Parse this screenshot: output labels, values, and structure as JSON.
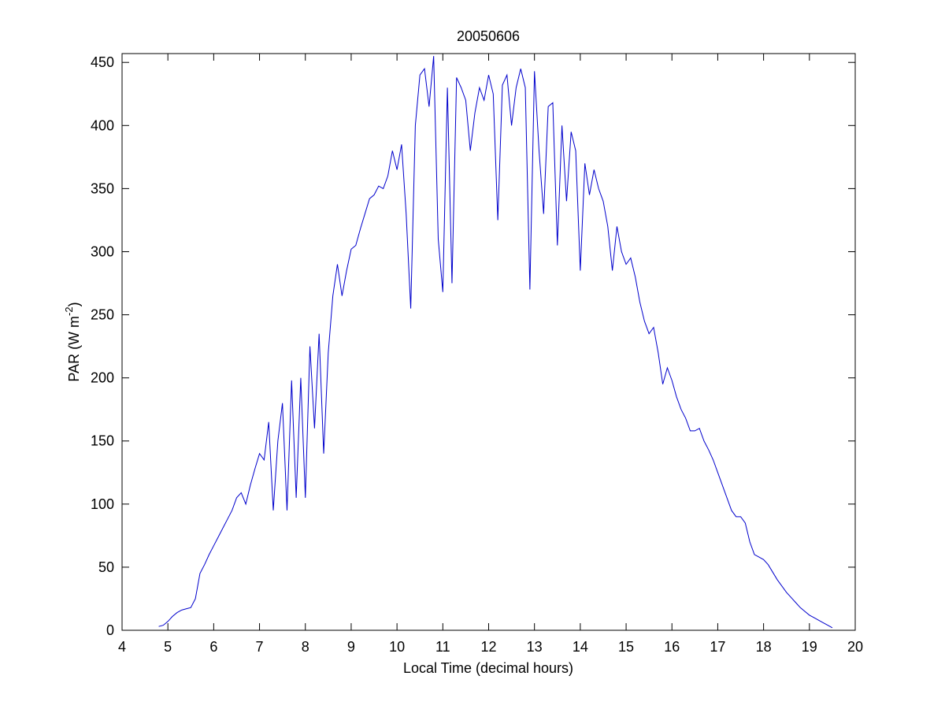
{
  "chart_data": {
    "type": "line",
    "title": "20050606",
    "xlabel": "Local Time (decimal hours)",
    "ylabel": {
      "text": "PAR (W m",
      "superscript": "-2",
      "suffix": ")"
    },
    "xlim": [
      4,
      20
    ],
    "ylim": [
      0,
      457
    ],
    "xticks": [
      4,
      5,
      6,
      7,
      8,
      9,
      10,
      11,
      12,
      13,
      14,
      15,
      16,
      17,
      18,
      19,
      20
    ],
    "yticks": [
      0,
      50,
      100,
      150,
      200,
      250,
      300,
      350,
      400,
      450
    ],
    "grid": false,
    "x": [
      4.8,
      4.9,
      5.0,
      5.1,
      5.2,
      5.3,
      5.4,
      5.5,
      5.6,
      5.7,
      5.8,
      5.9,
      6.0,
      6.1,
      6.2,
      6.3,
      6.4,
      6.5,
      6.6,
      6.7,
      6.8,
      6.9,
      7.0,
      7.1,
      7.2,
      7.3,
      7.4,
      7.5,
      7.6,
      7.7,
      7.8,
      7.9,
      8.0,
      8.1,
      8.2,
      8.3,
      8.4,
      8.5,
      8.6,
      8.7,
      8.8,
      8.9,
      9.0,
      9.1,
      9.2,
      9.3,
      9.4,
      9.5,
      9.6,
      9.7,
      9.8,
      9.9,
      10.0,
      10.1,
      10.2,
      10.3,
      10.4,
      10.5,
      10.6,
      10.7,
      10.8,
      10.9,
      11.0,
      11.1,
      11.2,
      11.3,
      11.4,
      11.5,
      11.6,
      11.7,
      11.8,
      11.9,
      12.0,
      12.1,
      12.2,
      12.3,
      12.4,
      12.5,
      12.6,
      12.7,
      12.8,
      12.9,
      13.0,
      13.1,
      13.2,
      13.3,
      13.4,
      13.5,
      13.6,
      13.7,
      13.8,
      13.9,
      14.0,
      14.1,
      14.2,
      14.3,
      14.4,
      14.5,
      14.6,
      14.7,
      14.8,
      14.9,
      15.0,
      15.1,
      15.2,
      15.3,
      15.4,
      15.5,
      15.6,
      15.7,
      15.8,
      15.9,
      16.0,
      16.1,
      16.2,
      16.3,
      16.4,
      16.5,
      16.6,
      16.7,
      16.8,
      16.9,
      17.0,
      17.1,
      17.2,
      17.3,
      17.4,
      17.5,
      17.6,
      17.7,
      17.8,
      17.9,
      18.0,
      18.1,
      18.2,
      18.3,
      18.4,
      18.5,
      18.6,
      18.7,
      18.8,
      18.9,
      19.0,
      19.1,
      19.2,
      19.3,
      19.4,
      19.5
    ],
    "series": [
      {
        "color": "#0000cc",
        "values": [
          3,
          4,
          7,
          11,
          14,
          16,
          17,
          18,
          25,
          45,
          52,
          60,
          67,
          74,
          81,
          88,
          95,
          105,
          109,
          100,
          115,
          128,
          140,
          135,
          165,
          95,
          150,
          180,
          95,
          198,
          105,
          200,
          105,
          225,
          160,
          235,
          140,
          220,
          265,
          290,
          265,
          285,
          302,
          305,
          318,
          330,
          342,
          345,
          352,
          350,
          360,
          380,
          365,
          385,
          330,
          255,
          400,
          440,
          445,
          415,
          455,
          310,
          268,
          430,
          275,
          438,
          430,
          420,
          380,
          410,
          430,
          420,
          440,
          425,
          325,
          432,
          440,
          400,
          430,
          445,
          430,
          270,
          443,
          380,
          330,
          415,
          418,
          305,
          400,
          340,
          395,
          380,
          285,
          370,
          345,
          365,
          350,
          340,
          320,
          285,
          320,
          300,
          290,
          295,
          280,
          260,
          245,
          235,
          240,
          220,
          195,
          208,
          198,
          185,
          175,
          168,
          158,
          158,
          160,
          150,
          143,
          135,
          125,
          115,
          105,
          95,
          90,
          90,
          85,
          70,
          60,
          58,
          56,
          52,
          46,
          40,
          35,
          30,
          26,
          22,
          18,
          15,
          12,
          10,
          8,
          6,
          4,
          2
        ]
      }
    ]
  }
}
